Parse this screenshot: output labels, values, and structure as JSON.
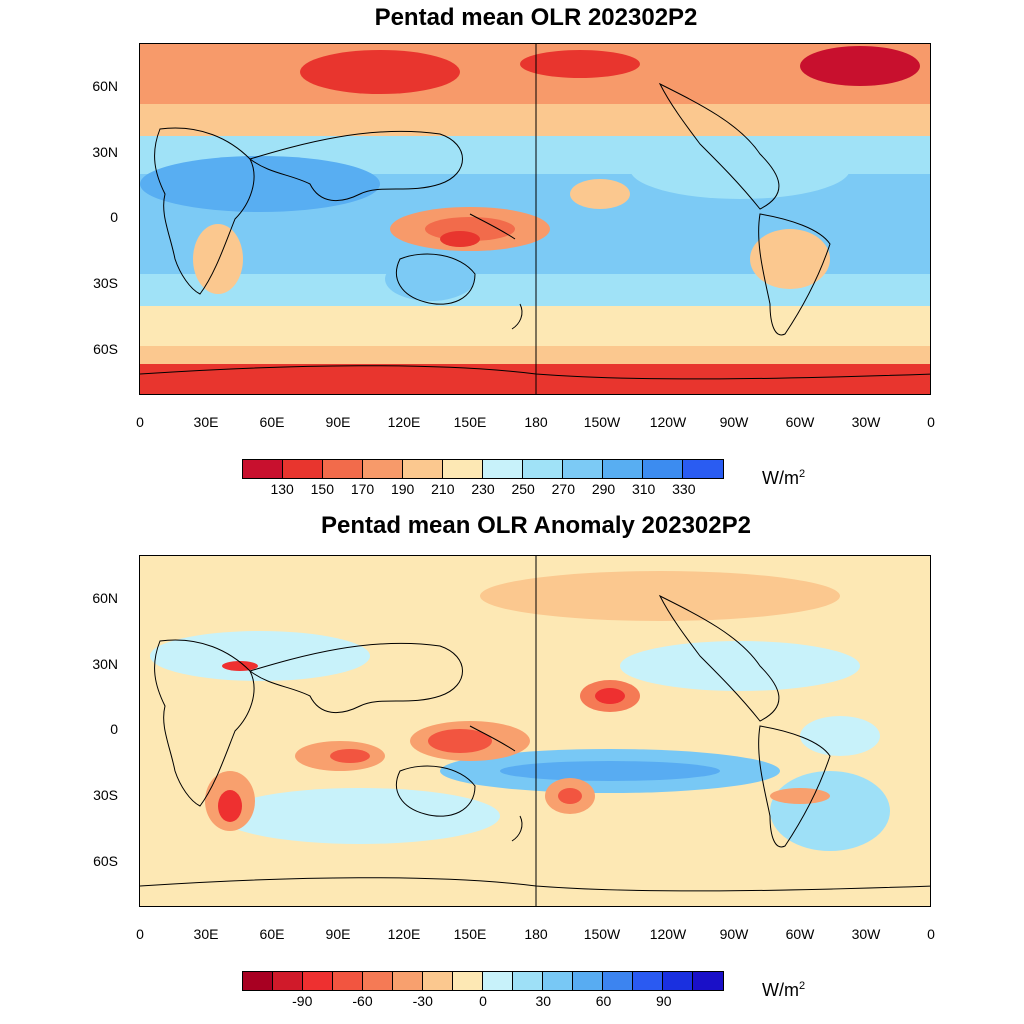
{
  "top_panel": {
    "title": "Pentad mean OLR 202302P2",
    "unit_base": "W/m",
    "unit_sup": "2",
    "colorbar": {
      "colors": [
        "#c8102e",
        "#e8352e",
        "#f26b4b",
        "#f79a6a",
        "#fbc88f",
        "#fde8b4",
        "#c8f2fa",
        "#a0e2f7",
        "#7ccaf5",
        "#58aef2",
        "#3c8cf0",
        "#2a5cf2"
      ],
      "labels": [
        "130",
        "150",
        "170",
        "190",
        "210",
        "230",
        "250",
        "270",
        "290",
        "310",
        "330"
      ]
    }
  },
  "bottom_panel": {
    "title": "Pentad mean OLR Anomaly 202302P2",
    "unit_base": "W/m",
    "unit_sup": "2",
    "colorbar": {
      "colors": [
        "#a80022",
        "#d01a2a",
        "#ee3030",
        "#f25540",
        "#f57a55",
        "#f8a06e",
        "#fbc88f",
        "#fde8b4",
        "#c8f2fa",
        "#9ee0f7",
        "#78c8f5",
        "#58acf2",
        "#3c84f0",
        "#2a5af2",
        "#1a30e0",
        "#1a10c8"
      ],
      "labels": [
        "-90",
        "-60",
        "-30",
        "0",
        "30",
        "60",
        "90"
      ]
    }
  },
  "axes": {
    "lat_labels": [
      "60N",
      "30N",
      "0",
      "30S",
      "60S"
    ],
    "lon_labels": [
      "0",
      "30E",
      "60E",
      "90E",
      "120E",
      "150E",
      "180",
      "150W",
      "120W",
      "90W",
      "60W",
      "30W",
      "0"
    ]
  }
}
